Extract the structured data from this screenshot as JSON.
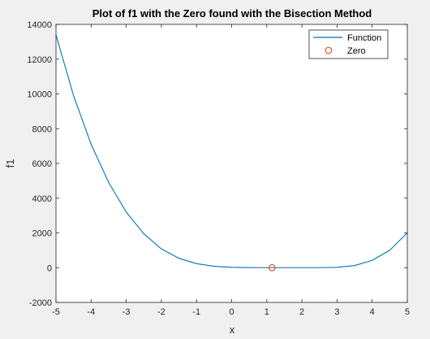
{
  "chart_data": {
    "type": "line",
    "title": "Plot of f1 with the Zero found with the Bisection Method",
    "xlabel": "x",
    "ylabel": "f1",
    "xlim": [
      -5,
      5
    ],
    "ylim": [
      -2000,
      14000
    ],
    "xticks": [
      -5,
      -4,
      -3,
      -2,
      -1,
      0,
      1,
      2,
      3,
      4,
      5
    ],
    "yticks": [
      -2000,
      0,
      2000,
      4000,
      6000,
      8000,
      10000,
      12000,
      14000
    ],
    "grid": false,
    "legend_position": "top-right",
    "series": [
      {
        "name": "Function",
        "color": "#0072bd",
        "x": [
          -5,
          -4.5,
          -4,
          -3.5,
          -3,
          -2.5,
          -2,
          -1.5,
          -1,
          -0.5,
          0,
          0.5,
          1,
          1.5,
          2,
          2.5,
          3,
          3.5,
          4,
          4.5,
          5
        ],
        "y": [
          13400,
          9900,
          7100,
          4900,
          3200,
          1950,
          1080,
          540,
          230,
          80,
          20,
          2,
          0,
          0,
          0,
          0,
          20,
          120,
          420,
          1000,
          2000
        ]
      },
      {
        "name": "Zero",
        "color": "#d95319",
        "marker": "circle",
        "x": [
          1.15
        ],
        "y": [
          0
        ]
      }
    ]
  }
}
